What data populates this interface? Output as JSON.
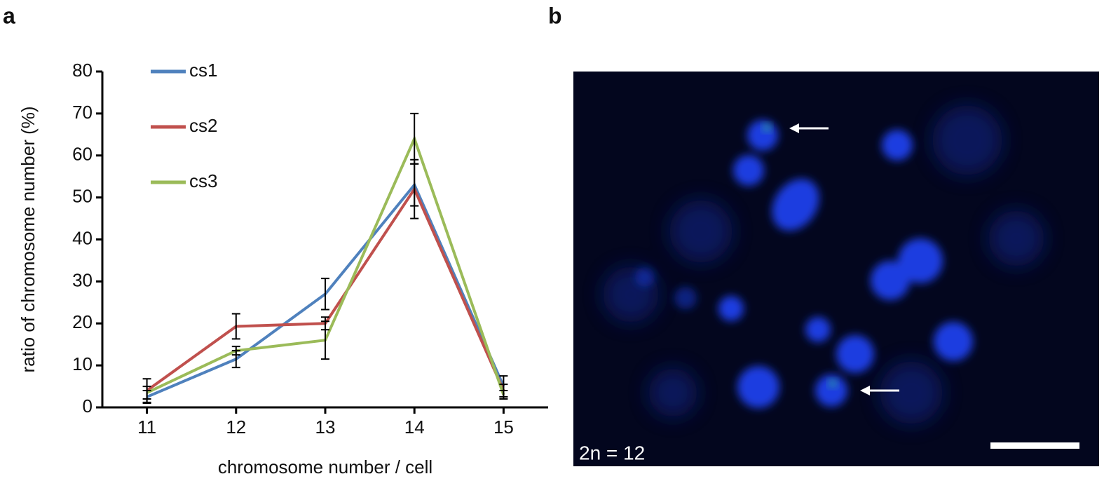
{
  "panel_labels": [
    "a",
    "b"
  ],
  "chart_data": {
    "type": "line",
    "xlabel": "chromosome number / cell",
    "ylabel": "ratio of chromosome number (%)",
    "x": [
      11,
      12,
      13,
      14,
      15
    ],
    "xlim": [
      10.5,
      15.5
    ],
    "xticks": [
      11,
      12,
      13,
      14,
      15
    ],
    "ylim": [
      0,
      80
    ],
    "yticks": [
      0,
      10,
      20,
      30,
      40,
      50,
      60,
      70,
      80
    ],
    "legend": "upper left",
    "series": [
      {
        "name": "cs1",
        "color": "#4f81bd",
        "values": [
          2.5,
          11.5,
          27,
          53,
          5
        ],
        "errors": [
          1.5,
          2,
          3.7,
          5,
          2.5
        ]
      },
      {
        "name": "cs2",
        "color": "#c0504d",
        "values": [
          4,
          19.3,
          20,
          52,
          4
        ],
        "errors": [
          2.8,
          3,
          1.5,
          7,
          1.5
        ]
      },
      {
        "name": "cs3",
        "color": "#9bbb59",
        "values": [
          3.5,
          13.5,
          16,
          64,
          3
        ],
        "errors": [
          1.5,
          1,
          4.5,
          6,
          1
        ]
      }
    ]
  },
  "image": {
    "label": "2n = 12"
  }
}
